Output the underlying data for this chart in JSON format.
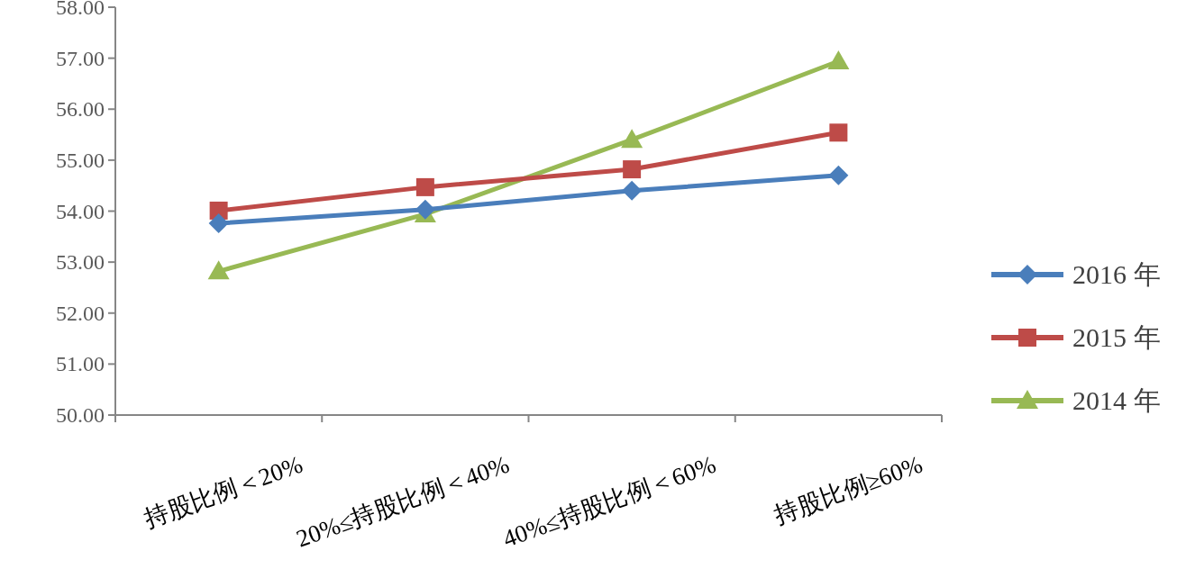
{
  "chart_data": {
    "type": "line",
    "categories": [
      "持股比例＜20%",
      "20%≤持股比例＜40%",
      "40%≤持股比例＜60%",
      "持股比例≥60%"
    ],
    "series": [
      {
        "name": "2016 年",
        "color": "#4a7ebb",
        "marker": "diamond",
        "values": [
          53.76,
          54.03,
          54.4,
          54.7
        ]
      },
      {
        "name": "2015 年",
        "color": "#be4b48",
        "marker": "square",
        "values": [
          54.01,
          54.47,
          54.82,
          55.54
        ]
      },
      {
        "name": "2014 年",
        "color": "#98b954",
        "marker": "triangle",
        "values": [
          52.82,
          53.94,
          55.4,
          56.94
        ]
      }
    ],
    "ylim": [
      50,
      58
    ],
    "yticks": [
      {
        "value": 50,
        "label": "50.00"
      },
      {
        "value": 51,
        "label": "51.00"
      },
      {
        "value": 52,
        "label": "52.00"
      },
      {
        "value": 53,
        "label": "53.00"
      },
      {
        "value": 54,
        "label": "54.00"
      },
      {
        "value": 55,
        "label": "55.00"
      },
      {
        "value": 56,
        "label": "56.00"
      },
      {
        "value": 57,
        "label": "57.00"
      },
      {
        "value": 58,
        "label": "58.00"
      }
    ],
    "grid": false,
    "legend": "right",
    "line_style": "solid"
  }
}
